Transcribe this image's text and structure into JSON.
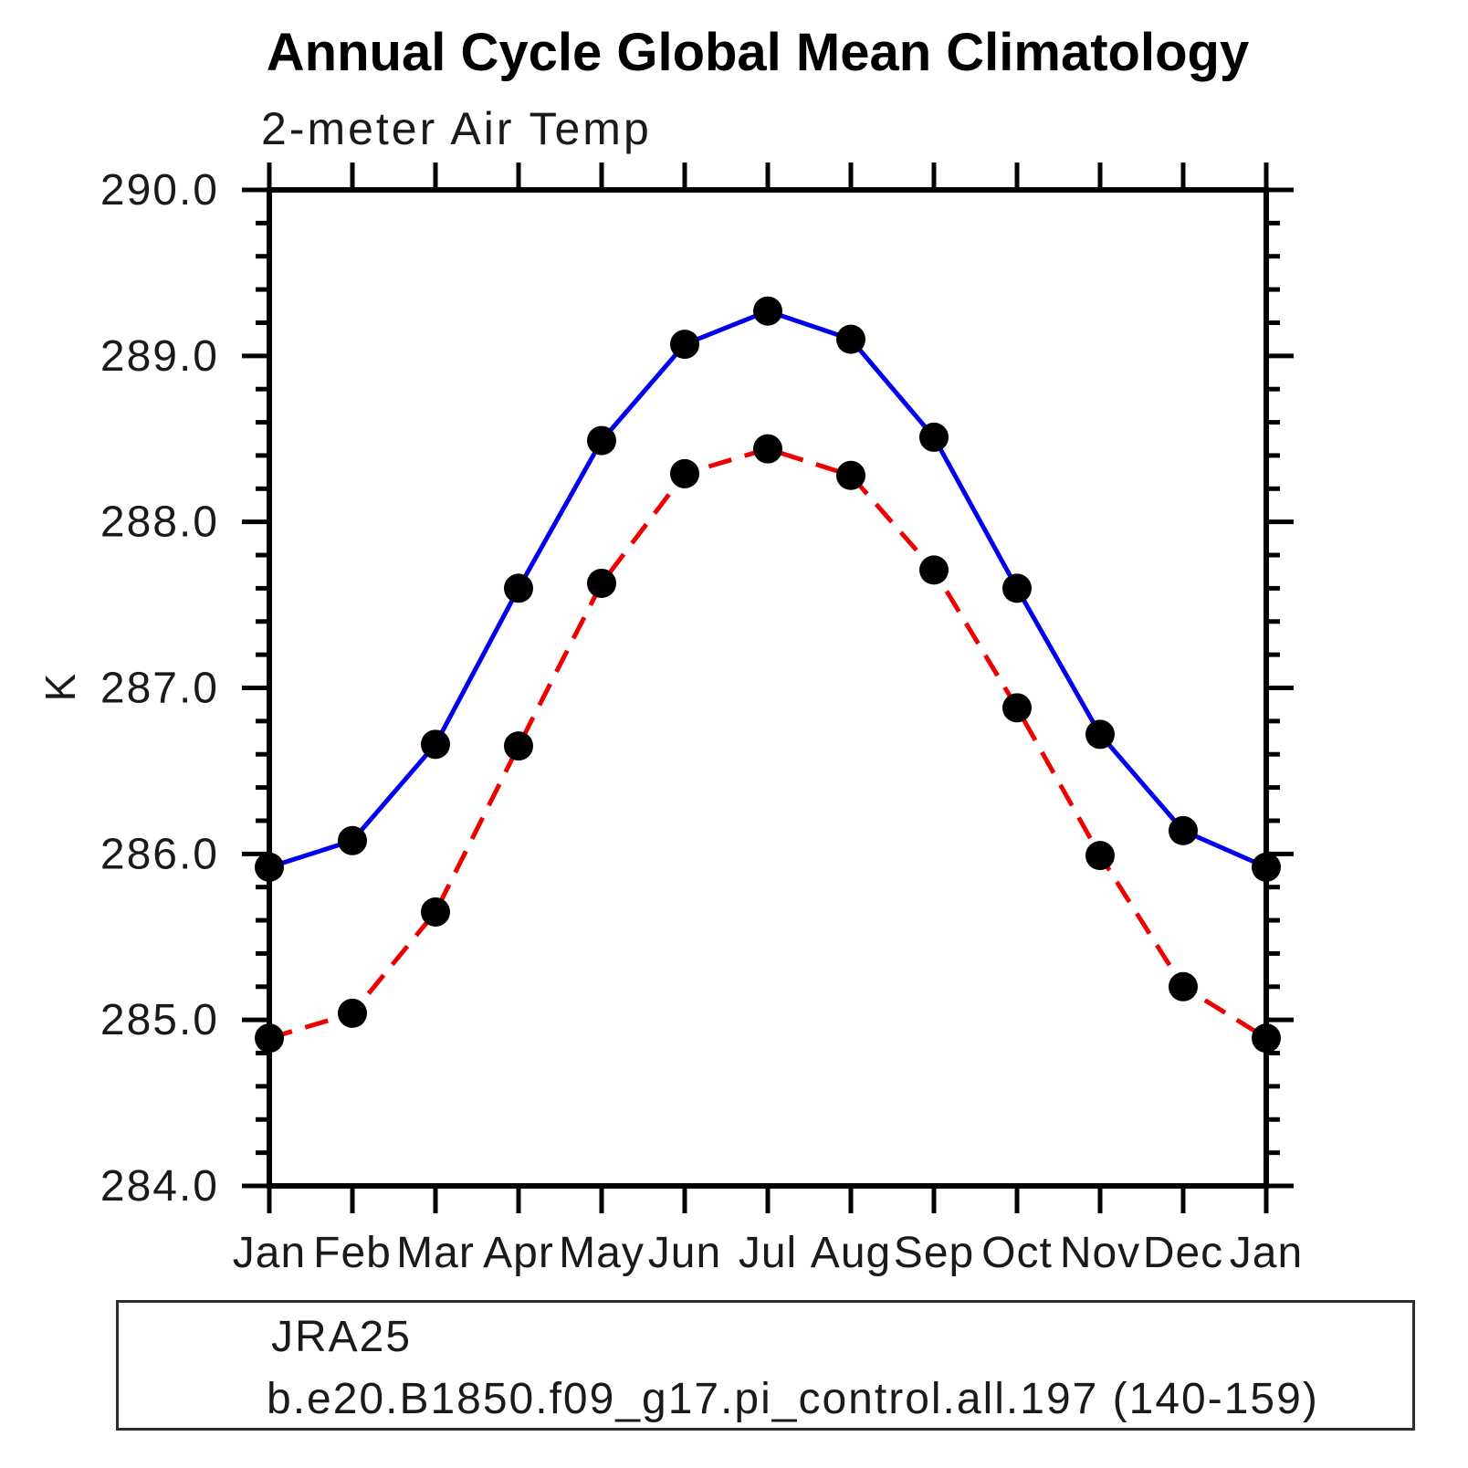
{
  "header": {
    "title": "Annual Cycle Global Mean Climatology",
    "subtitle": "2-meter Air Temp"
  },
  "chart_data": {
    "type": "line",
    "title": "Annual Cycle Global Mean Climatology",
    "subtitle": "2-meter Air Temp",
    "ylabel": "K",
    "xlabel": "",
    "ylim": [
      284.0,
      290.0
    ],
    "y_major_step": 1.0,
    "y_minor_step": 0.2,
    "y_tick_labels": [
      "290.0",
      "289.0",
      "288.0",
      "287.0",
      "286.0",
      "285.0",
      "284.0"
    ],
    "categories": [
      "Jan",
      "Feb",
      "Mar",
      "Apr",
      "May",
      "Jun",
      "Jul",
      "Aug",
      "Sep",
      "Oct",
      "Nov",
      "Dec",
      "Jan"
    ],
    "grid": false,
    "legend_position": "bottom-left-box",
    "marker_color": "#000000",
    "series": [
      {
        "name": "JRA25",
        "color": "#0000ee",
        "line_style": "solid",
        "marker": "filled-circle",
        "values": [
          285.92,
          286.08,
          286.66,
          287.6,
          288.49,
          289.07,
          289.27,
          289.1,
          288.51,
          287.6,
          286.72,
          286.14,
          285.92
        ]
      },
      {
        "name": "b.e20.B1850.f09_g17.pi_control.all.197 (140-159)",
        "color": "#ee0000",
        "line_style": "dashed",
        "marker": "filled-circle",
        "values": [
          284.89,
          285.04,
          285.65,
          286.65,
          287.63,
          288.29,
          288.44,
          288.28,
          287.71,
          286.88,
          285.99,
          285.2,
          284.89
        ]
      }
    ]
  }
}
